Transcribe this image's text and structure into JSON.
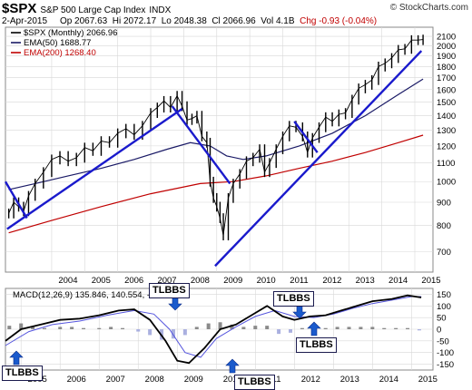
{
  "header": {
    "symbol": "$SPX",
    "name": "S&P 500 Large Cap Index",
    "exchange": "INDX",
    "watermark": "© StockCharts.com",
    "date": "2-Apr-2015",
    "open": "Op 2067.63",
    "high": "Hi 2072.17",
    "low": "Lo 2048.38",
    "close": "Cl 2066.96",
    "volume": "Vol 4.1B",
    "change": "Chg -0.93 (-0.04%)"
  },
  "colors": {
    "price": "#000000",
    "ema50": "#1a1a66",
    "ema200": "#c00000",
    "trendline": "#1a1acc",
    "macd_line": "#000000",
    "signal_line": "#5555dd",
    "histogram": "#8a8a8a",
    "histogram_shade": "#aab0e0",
    "tlbbs_arrow": "#1a5acc",
    "grid": "#d8d8d8"
  },
  "chart_data": [
    {
      "type": "line",
      "scale": "log",
      "legend_location": "top-left",
      "legend": [
        {
          "label": "$SPX (Monthly) 2066.96"
        },
        {
          "label": "EMA(50) 1688.77"
        },
        {
          "label": "EMA(200) 1268.40"
        }
      ],
      "y_ticks": [
        700,
        800,
        900,
        1000,
        1100,
        1200,
        1300,
        1400,
        1500,
        1600,
        1700,
        1800,
        1900,
        2000,
        2100
      ],
      "ylim": [
        630,
        2200
      ],
      "x_ticks": [
        "2004",
        "2005",
        "2006",
        "2007",
        "2008",
        "2009",
        "2010",
        "2011",
        "2012",
        "2013",
        "2014",
        "2015"
      ],
      "xlim": [
        2002.6,
        2015.55
      ],
      "series": [
        {
          "key": "price",
          "x": [
            2002.7,
            2002.85,
            2003.0,
            2003.15,
            2003.3,
            2003.5,
            2003.75,
            2004.0,
            2004.25,
            2004.5,
            2004.75,
            2005.0,
            2005.25,
            2005.5,
            2005.75,
            2006.0,
            2006.25,
            2006.5,
            2006.75,
            2007.0,
            2007.2,
            2007.4,
            2007.6,
            2007.8,
            2007.95,
            2008.1,
            2008.25,
            2008.4,
            2008.55,
            2008.7,
            2008.8,
            2008.9,
            2009.0,
            2009.1,
            2009.2,
            2009.35,
            2009.5,
            2009.7,
            2009.9,
            2010.1,
            2010.3,
            2010.45,
            2010.6,
            2010.8,
            2011.0,
            2011.2,
            2011.4,
            2011.6,
            2011.75,
            2011.9,
            2012.1,
            2012.3,
            2012.5,
            2012.7,
            2012.9,
            2013.1,
            2013.3,
            2013.5,
            2013.7,
            2013.9,
            2014.1,
            2014.3,
            2014.5,
            2014.7,
            2014.9,
            2015.1,
            2015.25
          ],
          "y": [
            850,
            900,
            880,
            860,
            930,
            990,
            1050,
            1120,
            1140,
            1110,
            1130,
            1190,
            1170,
            1230,
            1220,
            1280,
            1310,
            1270,
            1330,
            1420,
            1460,
            1510,
            1460,
            1550,
            1470,
            1370,
            1380,
            1400,
            1260,
            1220,
            1000,
            920,
            880,
            830,
            760,
            920,
            990,
            1040,
            1110,
            1130,
            1180,
            1050,
            1100,
            1180,
            1260,
            1330,
            1320,
            1260,
            1160,
            1250,
            1320,
            1390,
            1360,
            1410,
            1420,
            1520,
            1610,
            1640,
            1680,
            1800,
            1830,
            1880,
            1960,
            1970,
            2060,
            2060,
            2066
          ]
        },
        {
          "key": "ema50",
          "x": [
            2002.7,
            2003.5,
            2004.5,
            2005.5,
            2006.5,
            2007.5,
            2008.2,
            2008.8,
            2009.3,
            2009.8,
            2010.5,
            2011.5,
            2012.5,
            2013.5,
            2014.5,
            2015.25
          ],
          "y": [
            960,
            990,
            1030,
            1070,
            1120,
            1180,
            1220,
            1200,
            1140,
            1120,
            1140,
            1200,
            1280,
            1400,
            1560,
            1689
          ]
        },
        {
          "key": "ema200",
          "x": [
            2002.7,
            2004.0,
            2005.5,
            2007.0,
            2008.5,
            2009.5,
            2010.5,
            2011.5,
            2012.5,
            2013.5,
            2014.5,
            2015.25
          ],
          "y": [
            770,
            820,
            880,
            940,
            990,
            1000,
            1030,
            1070,
            1110,
            1160,
            1220,
            1268
          ]
        }
      ],
      "trendlines": [
        {
          "x": [
            2002.6,
            2003.25
          ],
          "y": [
            1000,
            830
          ]
        },
        {
          "x": [
            2002.65,
            2007.95
          ],
          "y": [
            785,
            1450
          ]
        },
        {
          "x": [
            2007.65,
            2009.4
          ],
          "y": [
            1470,
            990
          ]
        },
        {
          "x": [
            2008.95,
            2015.2
          ],
          "y": [
            650,
            1950
          ]
        },
        {
          "x": [
            2011.35,
            2012.05
          ],
          "y": [
            1360,
            1160
          ]
        }
      ]
    },
    {
      "type": "line",
      "legend": [
        {
          "label": "MACD(12,26,9) 135.846, 140.554, -4.707"
        }
      ],
      "y_ticks": [
        -150,
        -100,
        -50,
        0,
        50,
        100,
        150
      ],
      "ylim": [
        -175,
        175
      ],
      "x_ticks": [
        "2005",
        "2006",
        "2007",
        "2008",
        "2009",
        "2010",
        "2011",
        "2012",
        "2013",
        "2014",
        "2015"
      ],
      "xlim": [
        2004.6,
        2015.55
      ],
      "series": [
        {
          "key": "macd",
          "x": [
            2004.6,
            2005.0,
            2005.5,
            2006.0,
            2006.5,
            2007.0,
            2007.5,
            2007.9,
            2008.3,
            2008.7,
            2009.0,
            2009.3,
            2009.7,
            2010.1,
            2010.5,
            2010.9,
            2011.3,
            2011.7,
            2012.0,
            2012.4,
            2012.8,
            2013.2,
            2013.6,
            2014.0,
            2014.5,
            2014.9,
            2015.25
          ],
          "y": [
            -50,
            0,
            20,
            40,
            45,
            60,
            80,
            85,
            40,
            -50,
            -135,
            -145,
            -80,
            0,
            20,
            60,
            100,
            55,
            40,
            55,
            60,
            80,
            100,
            120,
            130,
            145,
            136
          ]
        },
        {
          "key": "signal",
          "x": [
            2004.6,
            2005.2,
            2005.8,
            2006.5,
            2007.2,
            2007.9,
            2008.4,
            2008.8,
            2009.2,
            2009.6,
            2010.0,
            2010.5,
            2011.0,
            2011.5,
            2012.0,
            2012.5,
            2013.0,
            2013.5,
            2014.0,
            2014.5,
            2015.0,
            2015.25
          ],
          "y": [
            -70,
            -10,
            20,
            35,
            60,
            80,
            65,
            0,
            -100,
            -120,
            -40,
            10,
            55,
            80,
            55,
            50,
            65,
            90,
            110,
            125,
            140,
            140
          ]
        }
      ],
      "histogram": {
        "x": [
          2004.7,
          2005.0,
          2005.3,
          2005.6,
          2006.0,
          2006.3,
          2006.6,
          2007.0,
          2007.3,
          2007.6,
          2008.0,
          2008.3,
          2008.6,
          2008.9,
          2009.2,
          2009.5,
          2009.8,
          2010.1,
          2010.4,
          2010.7,
          2011.0,
          2011.3,
          2011.6,
          2011.9,
          2012.2,
          2012.5,
          2012.8,
          2013.1,
          2013.4,
          2013.7,
          2014.0,
          2014.3,
          2014.6,
          2014.9,
          2015.2
        ],
        "y": [
          15,
          25,
          10,
          5,
          10,
          10,
          5,
          5,
          10,
          5,
          -10,
          -25,
          -45,
          -40,
          -25,
          10,
          25,
          30,
          20,
          10,
          15,
          15,
          -20,
          -15,
          5,
          10,
          5,
          10,
          10,
          10,
          10,
          5,
          5,
          5,
          -5
        ]
      }
    }
  ],
  "annotations": {
    "labels": [
      "TLBBS",
      "TLBBS",
      "TLBBS",
      "TLBBS",
      "TLBBS"
    ]
  }
}
